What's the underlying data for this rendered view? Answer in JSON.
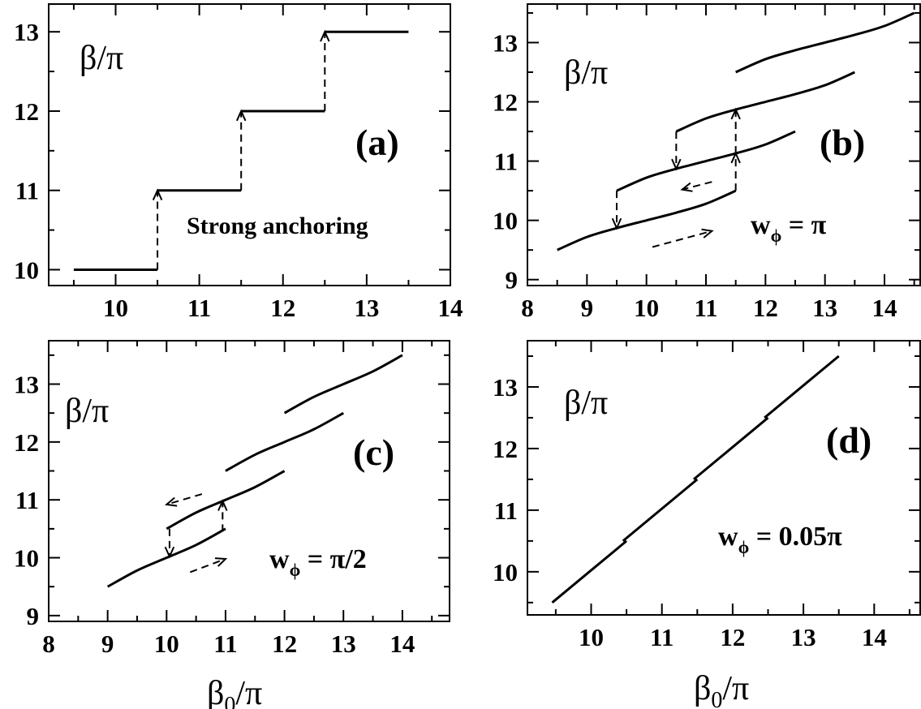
{
  "chart_data": [
    {
      "id": "a",
      "type": "line",
      "panel_label": "(a)",
      "ylabel": "β/π",
      "xlabel": "",
      "annotation": "Strong anchoring",
      "xlim": [
        9.2,
        14
      ],
      "ylim": [
        9.8,
        13.35
      ],
      "xticks": [
        10,
        11,
        12,
        13,
        14
      ],
      "yticks": [
        10,
        11,
        12,
        13
      ],
      "series": [
        {
          "points": [
            [
              9.5,
              10
            ],
            [
              10.5,
              10
            ]
          ]
        },
        {
          "points": [
            [
              10.5,
              11
            ],
            [
              11.5,
              11
            ]
          ]
        },
        {
          "points": [
            [
              11.5,
              12
            ],
            [
              12.5,
              12
            ]
          ]
        },
        {
          "points": [
            [
              12.5,
              13
            ],
            [
              13.5,
              13
            ]
          ]
        }
      ],
      "arrows": [
        {
          "from": [
            10.5,
            10
          ],
          "to": [
            10.5,
            11
          ]
        },
        {
          "from": [
            11.5,
            11
          ],
          "to": [
            11.5,
            12
          ]
        },
        {
          "from": [
            12.5,
            12
          ],
          "to": [
            12.5,
            13
          ]
        }
      ]
    },
    {
      "id": "b",
      "type": "line",
      "panel_label": "(b)",
      "ylabel": "β/π",
      "xlabel": "",
      "annotation": "w",
      "annotation_sub": "ϕ",
      "annotation_rest": " = π",
      "xlim": [
        8,
        14.6
      ],
      "ylim": [
        8.9,
        13.65
      ],
      "xticks": [
        8,
        9,
        10,
        11,
        12,
        13,
        14
      ],
      "yticks": [
        9,
        10,
        11,
        12,
        13
      ],
      "series": [
        {
          "points": [
            [
              8.5,
              9.5
            ],
            [
              9,
              9.72
            ],
            [
              9.5,
              9.87
            ],
            [
              10,
              10.0
            ],
            [
              10.5,
              10.13
            ],
            [
              11,
              10.28
            ],
            [
              11.5,
              10.5
            ]
          ]
        },
        {
          "points": [
            [
              9.5,
              10.5
            ],
            [
              10,
              10.72
            ],
            [
              10.5,
              10.87
            ],
            [
              11,
              11.0
            ],
            [
              11.5,
              11.13
            ],
            [
              12,
              11.28
            ],
            [
              12.5,
              11.5
            ]
          ]
        },
        {
          "points": [
            [
              10.5,
              11.5
            ],
            [
              11,
              11.72
            ],
            [
              11.5,
              11.87
            ],
            [
              12,
              12.0
            ],
            [
              12.5,
              12.13
            ],
            [
              13,
              12.28
            ],
            [
              13.5,
              12.5
            ]
          ]
        },
        {
          "points": [
            [
              11.5,
              12.5
            ],
            [
              12,
              12.72
            ],
            [
              12.5,
              12.87
            ],
            [
              13,
              13.0
            ],
            [
              13.5,
              13.13
            ],
            [
              14,
              13.28
            ],
            [
              14.5,
              13.5
            ]
          ]
        }
      ],
      "arrows": [
        {
          "from": [
            11.5,
            10.5
          ],
          "to": [
            11.5,
            11.13
          ]
        },
        {
          "from": [
            11.5,
            11.13
          ],
          "to": [
            11.5,
            11.87
          ]
        },
        {
          "from": [
            10.5,
            11.5
          ],
          "to": [
            10.5,
            10.87
          ]
        },
        {
          "from": [
            9.5,
            10.5
          ],
          "to": [
            9.5,
            9.87
          ]
        },
        {
          "from": [
            11.1,
            10.65
          ],
          "to": [
            10.6,
            10.52
          ]
        },
        {
          "from": [
            10.1,
            9.55
          ],
          "to": [
            11.1,
            9.82
          ]
        }
      ]
    },
    {
      "id": "c",
      "type": "line",
      "panel_label": "(c)",
      "ylabel": "β/π",
      "xlabel": "β",
      "xlabel_sub": "0",
      "xlabel_rest": "/π",
      "annotation": "w",
      "annotation_sub": "ϕ",
      "annotation_rest": " = π/2",
      "xlim": [
        8,
        14.8
      ],
      "ylim": [
        8.9,
        13.75
      ],
      "xticks": [
        8,
        9,
        10,
        11,
        12,
        13,
        14
      ],
      "yticks": [
        9,
        10,
        11,
        12,
        13
      ],
      "series": [
        {
          "points": [
            [
              9,
              9.5
            ],
            [
              9.5,
              9.78
            ],
            [
              10,
              10.0
            ],
            [
              10.5,
              10.22
            ],
            [
              11,
              10.5
            ]
          ]
        },
        {
          "points": [
            [
              10,
              10.5
            ],
            [
              10.5,
              10.78
            ],
            [
              11,
              11.0
            ],
            [
              11.5,
              11.22
            ],
            [
              12,
              11.5
            ]
          ]
        },
        {
          "points": [
            [
              11,
              11.5
            ],
            [
              11.5,
              11.78
            ],
            [
              12,
              12.0
            ],
            [
              12.5,
              12.22
            ],
            [
              13,
              12.5
            ]
          ]
        },
        {
          "points": [
            [
              12,
              12.5
            ],
            [
              12.5,
              12.78
            ],
            [
              13,
              13.0
            ],
            [
              13.5,
              13.22
            ],
            [
              14,
              13.5
            ]
          ]
        }
      ],
      "arrows": [
        {
          "from": [
            10.95,
            10.45
          ],
          "to": [
            10.95,
            10.98
          ]
        },
        {
          "from": [
            10.05,
            10.5
          ],
          "to": [
            10.05,
            10.02
          ]
        },
        {
          "from": [
            10.6,
            11.1
          ],
          "to": [
            10.0,
            10.92
          ]
        },
        {
          "from": [
            10.4,
            9.75
          ],
          "to": [
            11.0,
            9.98
          ]
        }
      ]
    },
    {
      "id": "d",
      "type": "line",
      "panel_label": "(d)",
      "ylabel": "β/π",
      "xlabel": "β",
      "xlabel_sub": "0",
      "xlabel_rest": "/π",
      "annotation": "w",
      "annotation_sub": "ϕ",
      "annotation_rest": " = 0.05π",
      "xlim": [
        9.1,
        14.65
      ],
      "ylim": [
        9.3,
        13.75
      ],
      "xticks": [
        10,
        11,
        12,
        13,
        14
      ],
      "yticks": [
        10,
        11,
        12,
        13
      ],
      "series": [
        {
          "points": [
            [
              9.45,
              9.5
            ],
            [
              10.5,
              10.5
            ]
          ]
        },
        {
          "points": [
            [
              10.45,
              10.5
            ],
            [
              11.5,
              11.5
            ]
          ]
        },
        {
          "points": [
            [
              11.45,
              11.5
            ],
            [
              12.5,
              12.5
            ]
          ]
        },
        {
          "points": [
            [
              12.45,
              12.5
            ],
            [
              13.5,
              13.5
            ]
          ]
        }
      ],
      "arrows": []
    }
  ],
  "layout_panels": {}
}
